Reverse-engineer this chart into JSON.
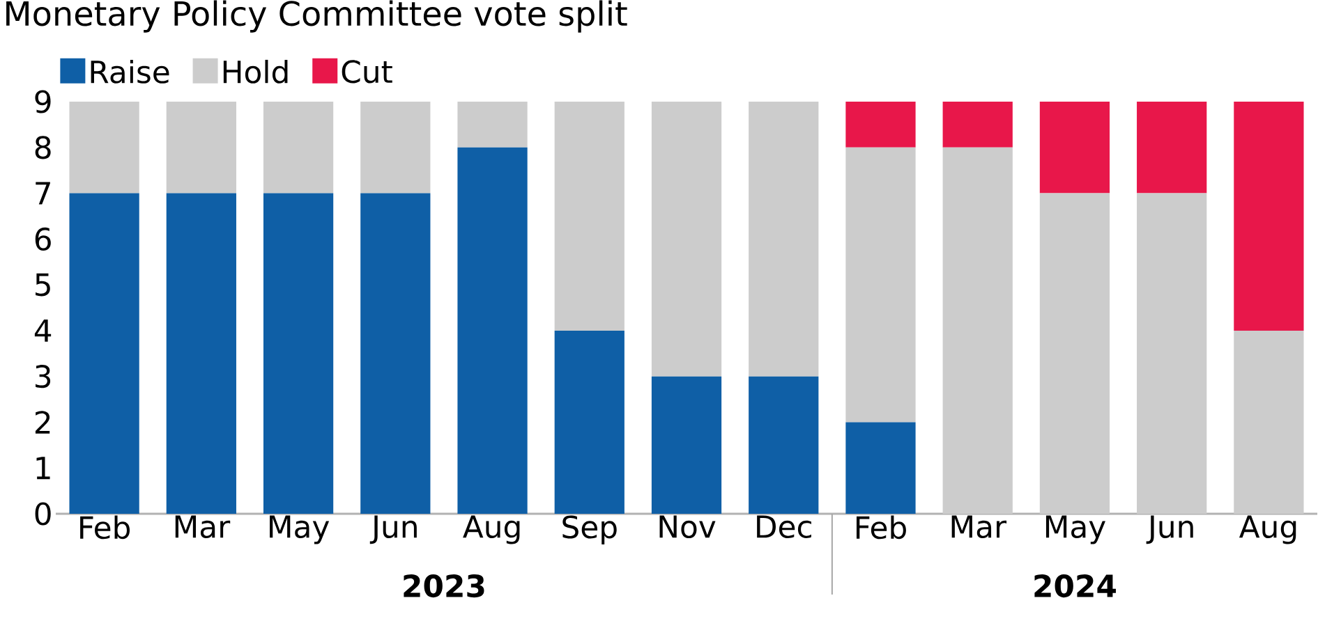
{
  "chart_data": {
    "type": "bar",
    "stacked": true,
    "title": "Monetary Policy Committee vote split",
    "categories": [
      "Feb",
      "Mar",
      "May",
      "Jun",
      "Aug",
      "Sep",
      "Nov",
      "Dec",
      "Feb",
      "Mar",
      "May",
      "Jun",
      "Aug"
    ],
    "series": [
      {
        "name": "Raise",
        "color": "#0f5fa6",
        "values": [
          7,
          7,
          7,
          7,
          8,
          4,
          3,
          3,
          2,
          0,
          0,
          0,
          0
        ]
      },
      {
        "name": "Hold",
        "color": "#cccccc",
        "values": [
          2,
          2,
          2,
          2,
          1,
          5,
          6,
          6,
          6,
          8,
          7,
          7,
          4
        ]
      },
      {
        "name": "Cut",
        "color": "#e8174a",
        "values": [
          0,
          0,
          0,
          0,
          0,
          0,
          0,
          0,
          1,
          1,
          2,
          2,
          5
        ]
      }
    ],
    "ylim": [
      0,
      9
    ],
    "yticks": [
      0,
      1,
      2,
      3,
      4,
      5,
      6,
      7,
      8,
      9
    ],
    "annotations": [
      "2023",
      "2024"
    ],
    "legend": "top left",
    "grid": false
  }
}
